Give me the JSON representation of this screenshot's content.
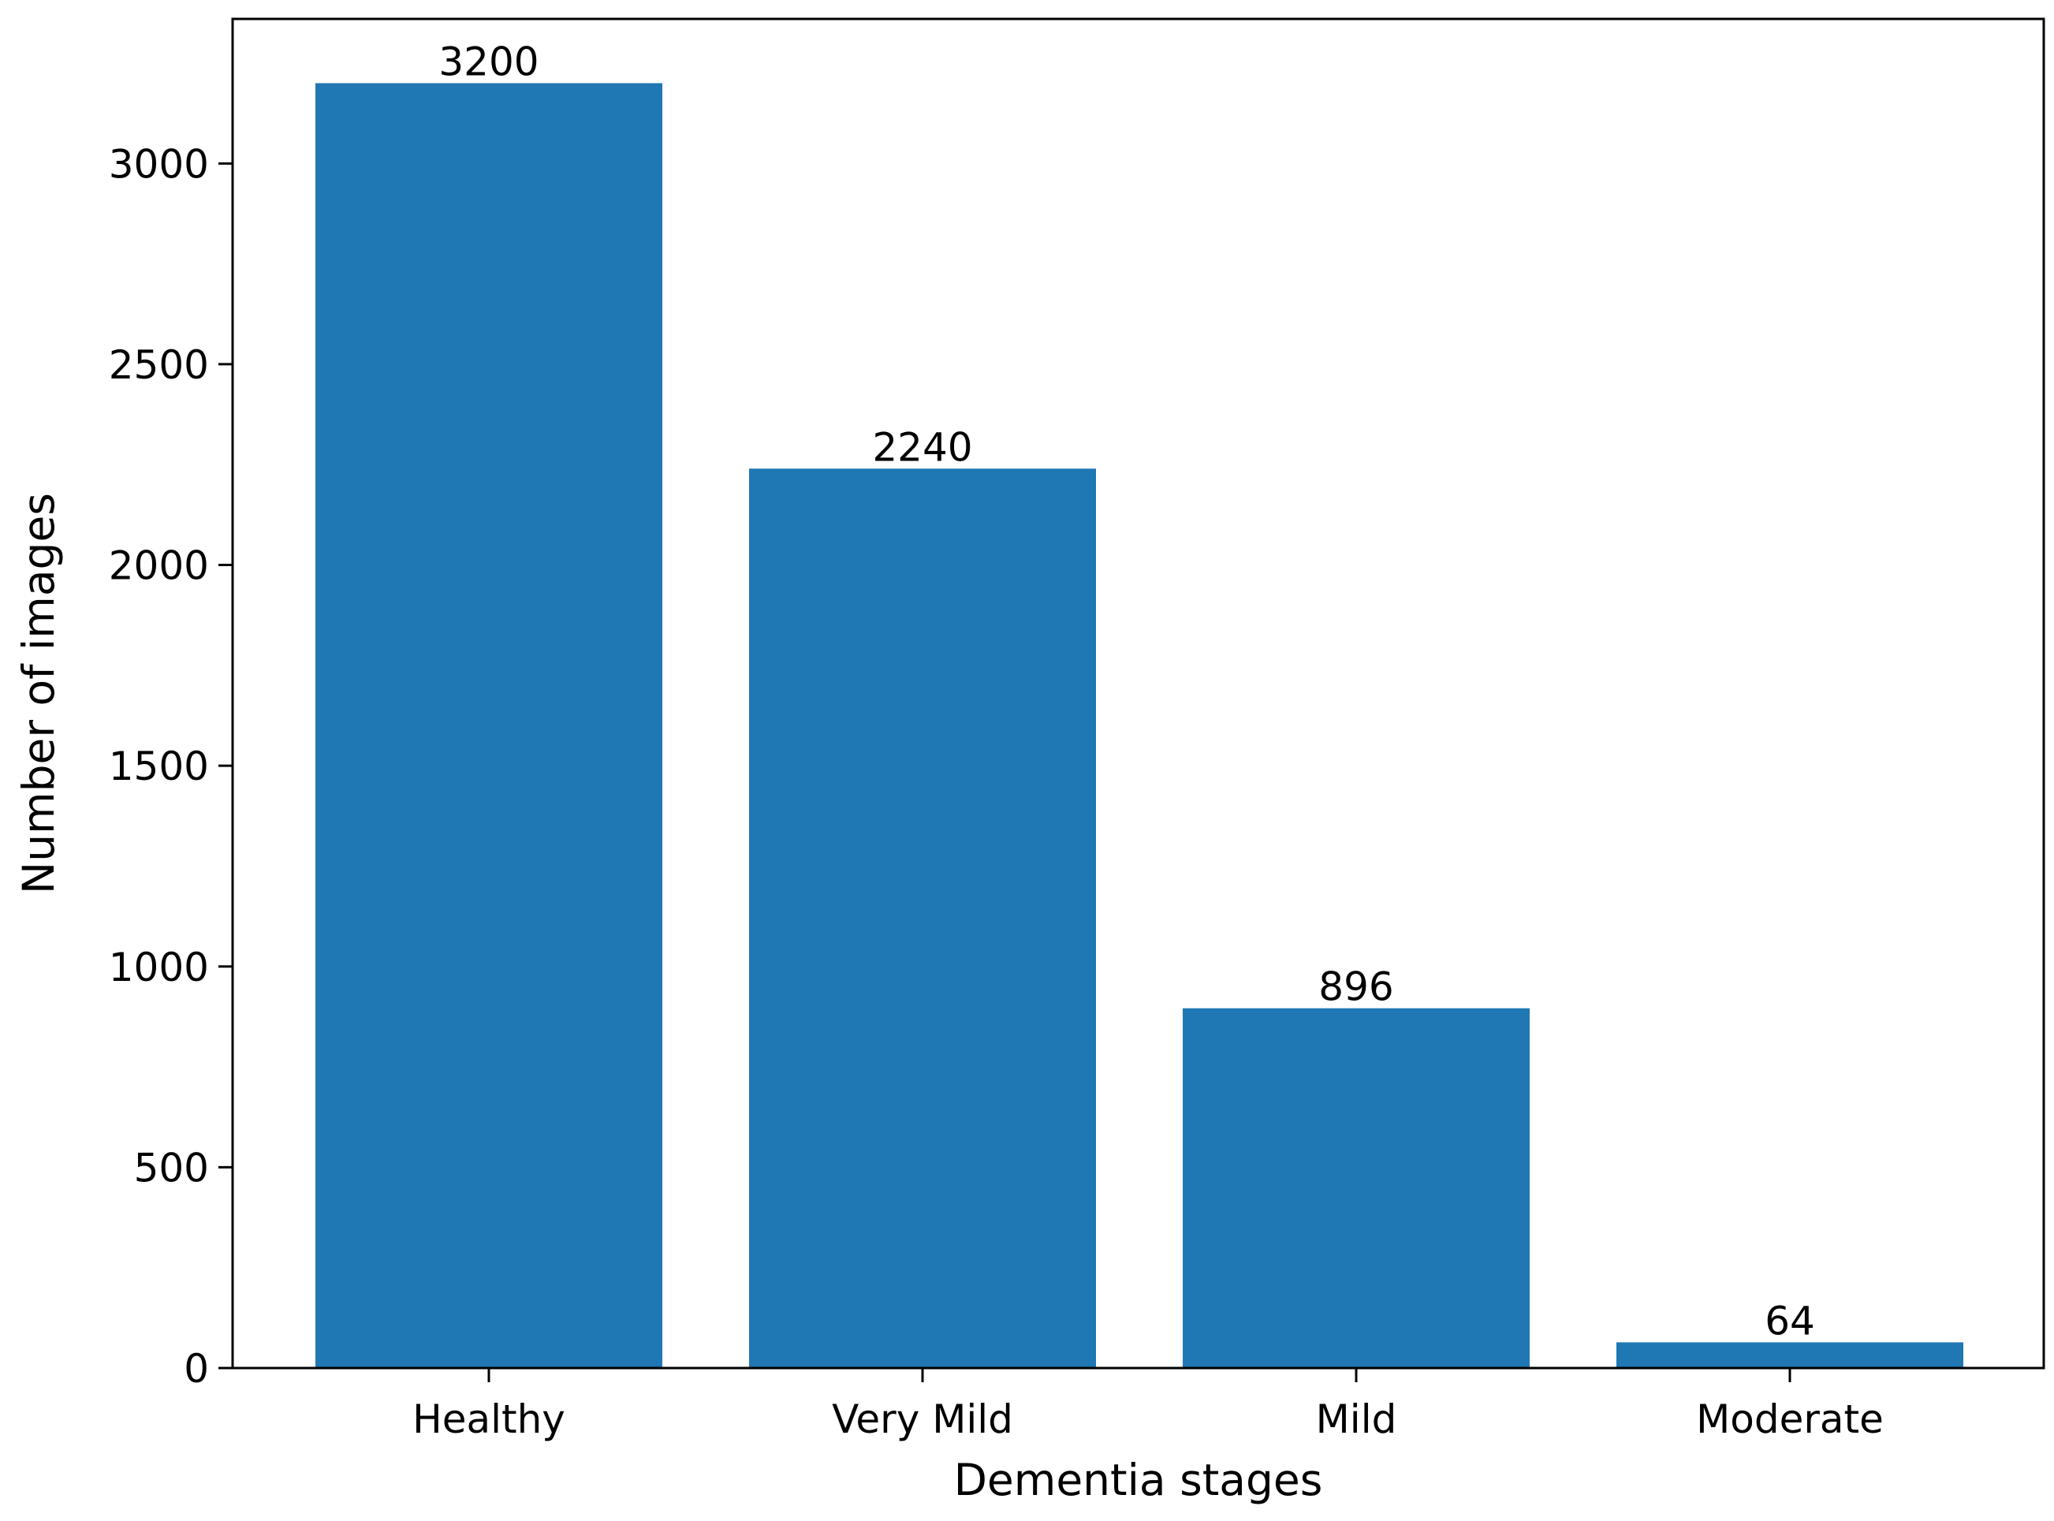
{
  "chart_data": {
    "type": "bar",
    "categories": [
      "Healthy",
      "Very Mild",
      "Mild",
      "Moderate"
    ],
    "values": [
      3200,
      2240,
      896,
      64
    ],
    "data_labels": [
      "3200",
      "2240",
      "896",
      "64"
    ],
    "title": "",
    "xlabel": "Dementia stages",
    "ylabel": "Number of images",
    "ylim": [
      0,
      3360
    ],
    "yticks": [
      0,
      500,
      1000,
      1500,
      2000,
      2500,
      3000
    ],
    "ytick_labels": [
      "0",
      "500",
      "1000",
      "1500",
      "2000",
      "2500",
      "3000"
    ],
    "grid": false,
    "legend": "none",
    "bar_color": "#1f77b4"
  }
}
